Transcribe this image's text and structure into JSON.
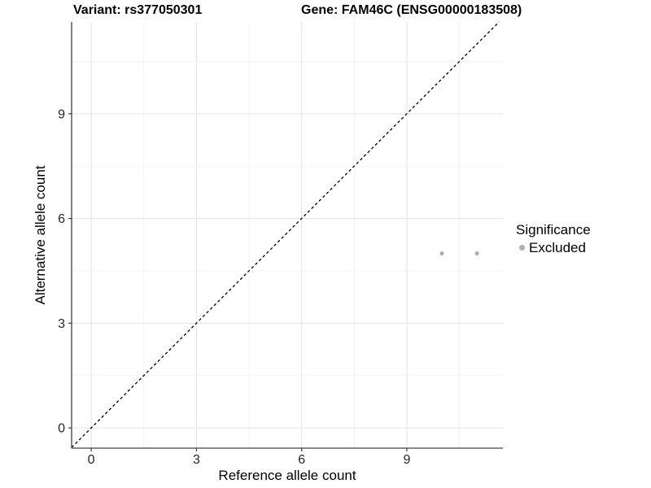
{
  "header": {
    "variant_title": "Variant: rs377050301",
    "gene_title": "Gene: FAM46C (ENSG00000183508)"
  },
  "legend": {
    "title": "Significance",
    "items": [
      {
        "label": "Excluded",
        "color": "#b0b0b0"
      }
    ]
  },
  "colors": {
    "background": "#ffffff",
    "grid_major": "#e8e8e8",
    "grid_minor": "#f0f0f0",
    "axis_line": "#404040",
    "tick_text": "#262626",
    "point": "#b0b0b0",
    "reference_line": "#000000"
  },
  "chart_data": {
    "type": "scatter",
    "title": "Variant: rs377050301 — Gene: FAM46C (ENSG00000183508)",
    "xlabel": "Reference allele count",
    "ylabel": "Alternative allele count",
    "xlim": [
      -0.56,
      11.74
    ],
    "ylim": [
      -0.58,
      11.63
    ],
    "x_ticks": [
      0,
      3,
      6,
      9
    ],
    "y_ticks": [
      0,
      3,
      6,
      9
    ],
    "x_minor_ticks": [
      1.5,
      4.5,
      7.5,
      10.5
    ],
    "y_minor_ticks": [
      1.5,
      4.5,
      7.5,
      10.5
    ],
    "grid": true,
    "legend_position": "right",
    "series": [
      {
        "name": "Excluded",
        "color": "#b0b0b0",
        "points": [
          {
            "x": 10,
            "y": 5
          },
          {
            "x": 11,
            "y": 5
          }
        ]
      }
    ],
    "reference_line": {
      "slope": 1,
      "intercept": 0,
      "style": "dashed",
      "color": "#000000"
    }
  }
}
